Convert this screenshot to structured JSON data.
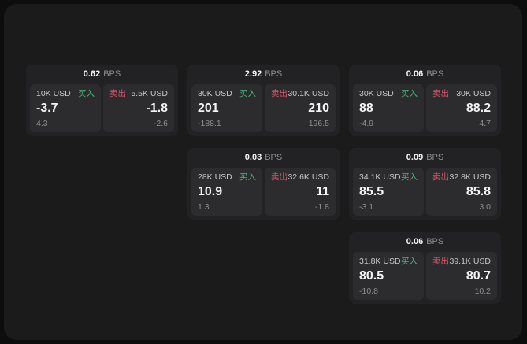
{
  "colors": {
    "page_bg": "#0d0d0d",
    "panel_bg": "#1b1b1c",
    "card_bg": "#222224",
    "cell_bg": "#2c2c2e",
    "buy": "#46b97c",
    "sell": "#d4566a",
    "value": "#f4f4f4",
    "muted": "#8f8f90",
    "label": "#c7c7c8"
  },
  "labels": {
    "bps_unit": "BPS",
    "buy": "买入",
    "sell": "卖出"
  },
  "cards": [
    {
      "bps": "0.62",
      "row": 1,
      "col": 1,
      "buy": {
        "amount": "10K USD",
        "value": "-3.7",
        "sub": "4.3"
      },
      "sell": {
        "amount": "5.5K USD",
        "value": "-1.8",
        "sub": "-2.6"
      }
    },
    {
      "bps": "2.92",
      "row": 1,
      "col": 2,
      "buy": {
        "amount": "30K USD",
        "value": "201",
        "sub": "-188.1"
      },
      "sell": {
        "amount": "30.1K USD",
        "value": "210",
        "sub": "196.5"
      }
    },
    {
      "bps": "0.06",
      "row": 1,
      "col": 3,
      "buy": {
        "amount": "30K USD",
        "value": "88",
        "sub": "-4.9"
      },
      "sell": {
        "amount": "30K USD",
        "value": "88.2",
        "sub": "4.7"
      }
    },
    {
      "bps": "0.03",
      "row": 2,
      "col": 2,
      "buy": {
        "amount": "28K USD",
        "value": "10.9",
        "sub": "1.3"
      },
      "sell": {
        "amount": "32.6K USD",
        "value": "11",
        "sub": "-1.8"
      }
    },
    {
      "bps": "0.09",
      "row": 2,
      "col": 3,
      "buy": {
        "amount": "34.1K USD",
        "value": "85.5",
        "sub": "-3.1"
      },
      "sell": {
        "amount": "32.8K USD",
        "value": "85.8",
        "sub": "3.0"
      }
    },
    {
      "bps": "0.06",
      "row": 3,
      "col": 3,
      "buy": {
        "amount": "31.8K USD",
        "value": "80.5",
        "sub": "-10.8"
      },
      "sell": {
        "amount": "39.1K USD",
        "value": "80.7",
        "sub": "10.2"
      }
    }
  ]
}
